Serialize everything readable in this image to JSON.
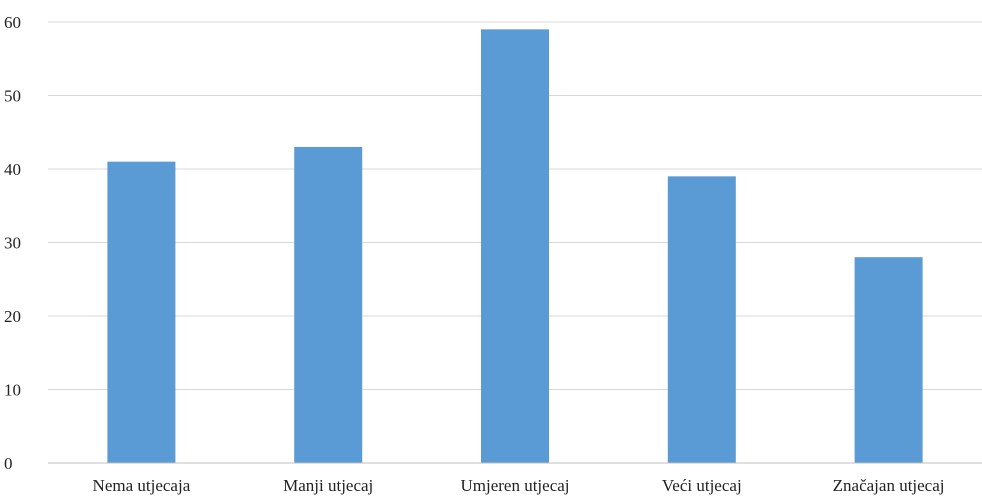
{
  "chart_data": {
    "type": "bar",
    "title": "",
    "xlabel": "",
    "ylabel": "",
    "categories": [
      "Nema utjecaja",
      "Manji utjecaj",
      "Umjeren utjecaj",
      "Veći utjecaj",
      "Značajan utjecaj"
    ],
    "values": [
      41,
      43,
      59,
      39,
      28
    ],
    "ylim": [
      0,
      60
    ],
    "yticks": [
      0,
      10,
      20,
      30,
      40,
      50,
      60
    ],
    "grid": true,
    "legend": "none",
    "colors": {
      "bar": "#5b9bd5",
      "grid": "#d9d9d9",
      "axis": "#bfbfbf",
      "text": "#222222"
    }
  }
}
